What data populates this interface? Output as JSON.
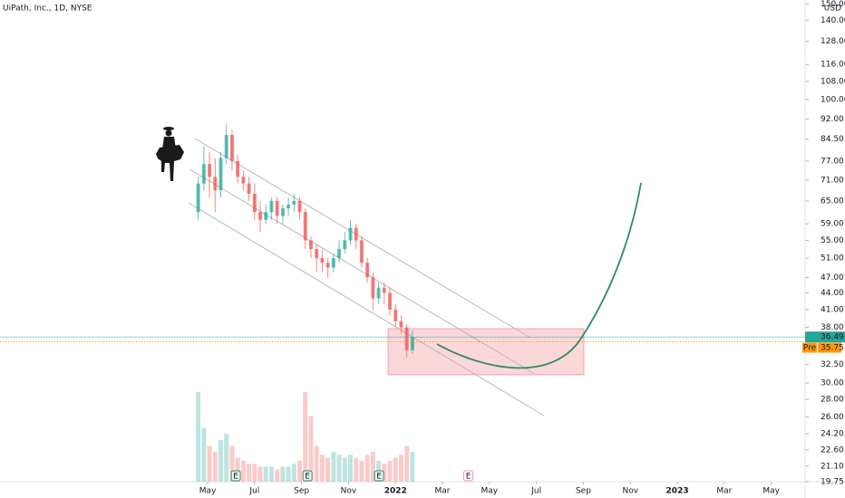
{
  "chart_data": {
    "type": "candlestick",
    "title": "UiPath, Inc., 1D, NYSE",
    "currency": "USD",
    "log_scale": true,
    "up_color": "#26a69a",
    "down_color": "#ef5350",
    "x": [
      -0.4,
      -0.16,
      0.08,
      0.32,
      0.56,
      0.8,
      1.04,
      1.28,
      1.52,
      1.76,
      2.0,
      2.24,
      2.48,
      2.72,
      2.96,
      3.2,
      3.44,
      3.68,
      3.92,
      4.16,
      4.4,
      4.64,
      4.88,
      5.12,
      5.36,
      5.6,
      5.84,
      6.08,
      6.32,
      6.56,
      6.8,
      7.04,
      7.28,
      7.52,
      7.76,
      8.0,
      8.24,
      8.48,
      8.72
    ],
    "open": [
      62,
      70,
      76,
      72,
      68,
      78,
      86,
      77,
      72,
      70,
      67,
      62,
      60,
      62,
      65,
      61,
      63,
      64,
      65,
      62,
      55,
      53,
      51,
      50,
      49,
      51,
      53,
      55,
      58,
      55,
      50,
      47,
      43,
      45,
      44,
      41,
      39,
      38,
      34.5
    ],
    "high": [
      72,
      82,
      80,
      78,
      80,
      90,
      88,
      79,
      74,
      72,
      70,
      65,
      64,
      66,
      66,
      64,
      66,
      67,
      66,
      63,
      56,
      54,
      53,
      51,
      52,
      55,
      57,
      60,
      59,
      56,
      51,
      48,
      46,
      46,
      45,
      42,
      40,
      38.5,
      37.5
    ],
    "low": [
      60,
      68,
      66,
      62,
      66,
      76,
      74,
      70,
      68,
      65,
      60,
      57,
      59,
      60,
      59,
      59,
      61,
      62,
      60,
      53,
      51,
      48,
      48,
      47,
      48,
      50,
      52,
      54,
      53,
      49,
      46,
      41,
      42,
      42,
      40,
      38,
      37,
      33.5,
      34
    ],
    "close": [
      70,
      76,
      72,
      68,
      78,
      86,
      77,
      72,
      70,
      67,
      62,
      60,
      62,
      65,
      61,
      63,
      64,
      65,
      62,
      55,
      53,
      51,
      50,
      49,
      51,
      53,
      55,
      58,
      55,
      50,
      47,
      43,
      45,
      44,
      41,
      39,
      38,
      34.5,
      36.49
    ],
    "volume": [
      30,
      18,
      12,
      10,
      14,
      16,
      12,
      8,
      7,
      6,
      6,
      5,
      5,
      5,
      4,
      5,
      5,
      6,
      7,
      30,
      22,
      12,
      9,
      8,
      10,
      9,
      8,
      9,
      8,
      7,
      9,
      10,
      7,
      6,
      7,
      8,
      9,
      12,
      10
    ],
    "volume_lim": [
      0,
      40
    ],
    "xlim": [
      -8.84,
      25.44
    ],
    "ylim": [
      19.15,
      152.5
    ],
    "xticks": [
      {
        "value": 0,
        "label": "May"
      },
      {
        "value": 2,
        "label": "Jul"
      },
      {
        "value": 4,
        "label": "Sep"
      },
      {
        "value": 6,
        "label": "Nov"
      },
      {
        "value": 8,
        "label": "2022"
      },
      {
        "value": 10,
        "label": "Mar"
      },
      {
        "value": 12,
        "label": "May"
      },
      {
        "value": 14,
        "label": "Jul"
      },
      {
        "value": 16,
        "label": "Sep"
      },
      {
        "value": 18,
        "label": "Nov"
      },
      {
        "value": 20,
        "label": "2023"
      },
      {
        "value": 22,
        "label": "Mar"
      },
      {
        "value": 24,
        "label": "May"
      }
    ],
    "yticks": [
      {
        "value": 19.75,
        "label": "19.75"
      },
      {
        "value": 21.1,
        "label": "21.10"
      },
      {
        "value": 22.6,
        "label": "22.60"
      },
      {
        "value": 24.2,
        "label": "24.20"
      },
      {
        "value": 26,
        "label": "26.00"
      },
      {
        "value": 28,
        "label": "28.00"
      },
      {
        "value": 30,
        "label": "30.00"
      },
      {
        "value": 32.5,
        "label": "32.50"
      },
      {
        "value": 38,
        "label": "38.00"
      },
      {
        "value": 41,
        "label": "41.00"
      },
      {
        "value": 44,
        "label": "44.00"
      },
      {
        "value": 47,
        "label": "47.00"
      },
      {
        "value": 51,
        "label": "51.00"
      },
      {
        "value": 55,
        "label": "55.00"
      },
      {
        "value": 59,
        "label": "59.00"
      },
      {
        "value": 65,
        "label": "65.00"
      },
      {
        "value": 71,
        "label": "71.00"
      },
      {
        "value": 77,
        "label": "77.00"
      },
      {
        "value": 84.5,
        "label": "84.50"
      },
      {
        "value": 92,
        "label": "92.00"
      },
      {
        "value": 100,
        "label": "100.00"
      },
      {
        "value": 108,
        "label": "108.00"
      },
      {
        "value": 116,
        "label": "116.00"
      },
      {
        "value": 128,
        "label": "128.00"
      },
      {
        "value": 140,
        "label": "140.00"
      },
      {
        "value": 150,
        "label": "150.00"
      }
    ],
    "last_price": 36.49,
    "pre_market": {
      "label": "Pre",
      "value": 35.75
    },
    "events": [
      {
        "label": "E",
        "x": 1.2
      },
      {
        "label": "E",
        "x": 4.25
      },
      {
        "label": "E",
        "x": 7.3
      },
      {
        "label": "E",
        "x": 11.1
      }
    ]
  }
}
